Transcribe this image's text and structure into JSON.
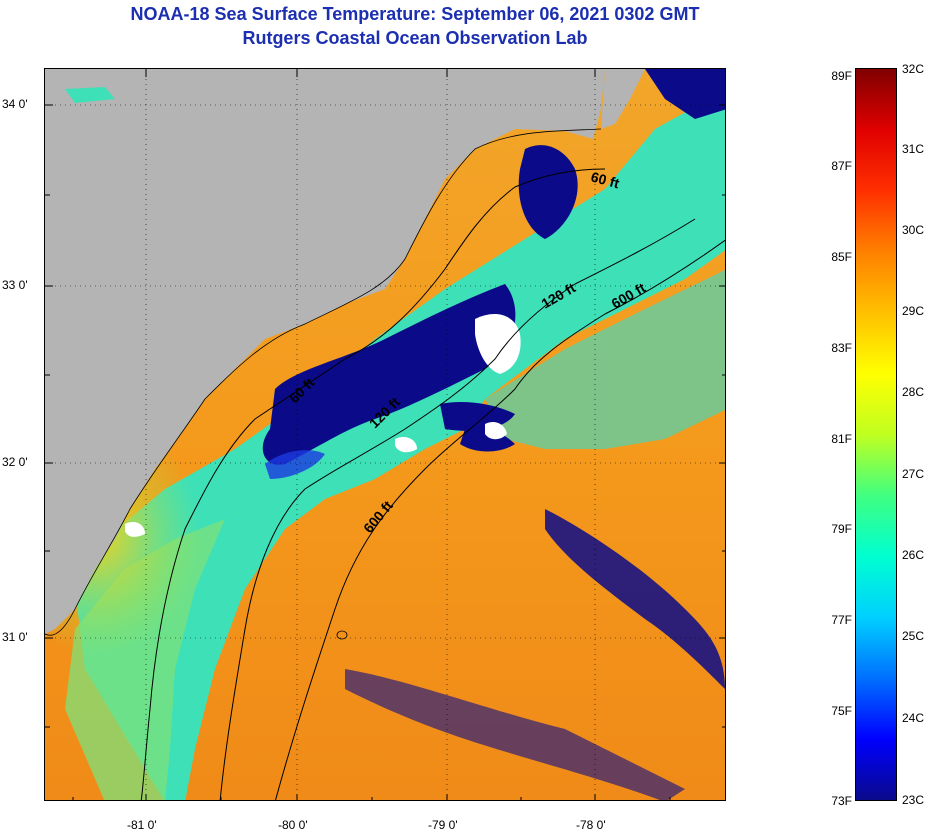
{
  "title_line1": "NOAA-18 Sea Surface Temperature:  September 06, 2021 0302 GMT",
  "title_line2": "Rutgers Coastal Ocean Observation Lab",
  "latitude_labels": [
    {
      "label": "34 0'",
      "value": 34.0
    },
    {
      "label": "33 0'",
      "value": 33.0
    },
    {
      "label": "32 0'",
      "value": 32.0
    },
    {
      "label": "31 0'",
      "value": 31.0
    }
  ],
  "longitude_labels": [
    {
      "label": "-81 0'",
      "value": -81.0
    },
    {
      "label": "-80 0'",
      "value": -80.0
    },
    {
      "label": "-79 0'",
      "value": -79.0
    },
    {
      "label": "-78 0'",
      "value": -78.0
    }
  ],
  "depth_contour_labels": [
    {
      "label": "60 ft"
    },
    {
      "label": "120 ft"
    },
    {
      "label": "600 ft"
    },
    {
      "label": "60 ft"
    },
    {
      "label": "120 ft"
    },
    {
      "label": "600 ft"
    }
  ],
  "colorbar": {
    "fahrenheit_labels": [
      "89F",
      "87F",
      "85F",
      "83F",
      "81F",
      "79F",
      "77F",
      "75F",
      "73F"
    ],
    "celsius_labels": [
      "32C",
      "31C",
      "30C",
      "29C",
      "28C",
      "27C",
      "26C",
      "25C",
      "24C",
      "23C"
    ],
    "range_c": [
      23,
      32
    ],
    "colors": [
      "#0a0a8c",
      "#0000ff",
      "#0070ff",
      "#00d0ff",
      "#00ffd0",
      "#40ff80",
      "#c0ff20",
      "#ffff00",
      "#ffc000",
      "#ff8000",
      "#ff3000",
      "#e00000",
      "#800000"
    ]
  },
  "colors": {
    "land": "#b4b4b4",
    "title": "#1c2fb0",
    "warm_water": "#f59a1e",
    "shelf_water": "#38e6c8",
    "cold_upwelling": "#0b0b8a",
    "cloud": "#ffffff"
  }
}
